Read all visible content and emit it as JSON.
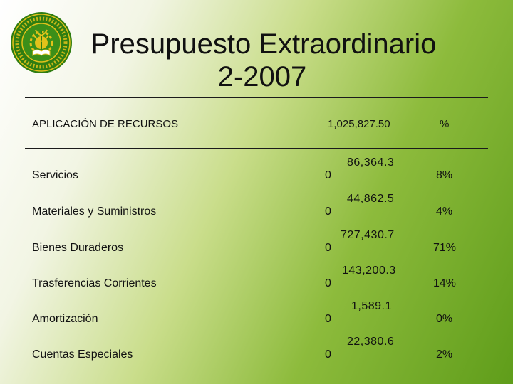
{
  "slide": {
    "title_line1": "Presupuesto Extraordinario",
    "title_line2": "2-2007",
    "logo": {
      "icon": "institution-seal-icon",
      "text": "INSTITUTO TECNOLÓGICO DE COSTA RICA"
    }
  },
  "table": {
    "header": {
      "label": "APLICACIÓN DE RECURSOS",
      "total": "1,025,827.50",
      "pct": "%"
    },
    "rows": [
      {
        "label": "Servicios",
        "amount_main": "86,364.3",
        "amount_tail": "0",
        "pct": "8%"
      },
      {
        "label": "Materiales y Suministros",
        "amount_main": "44,862.5",
        "amount_tail": "0",
        "pct": "4%"
      },
      {
        "label": "Bienes Duraderos",
        "amount_main": "727,430.7",
        "amount_tail": "0",
        "pct": "71%"
      },
      {
        "label": "Trasferencias Corrientes",
        "amount_main": "143,200.3",
        "amount_tail": "0",
        "pct": "14%"
      },
      {
        "label": "Amortización",
        "amount_main": "1,589.1",
        "amount_tail": "0",
        "pct": "0%"
      },
      {
        "label": "Cuentas Especiales",
        "amount_main": "22,380.6",
        "amount_tail": "0",
        "pct": "2%"
      }
    ]
  },
  "colors": {
    "rule": "#1b1b1b",
    "logo_green": "#2f7d12",
    "logo_gold": "#e3c21a"
  }
}
